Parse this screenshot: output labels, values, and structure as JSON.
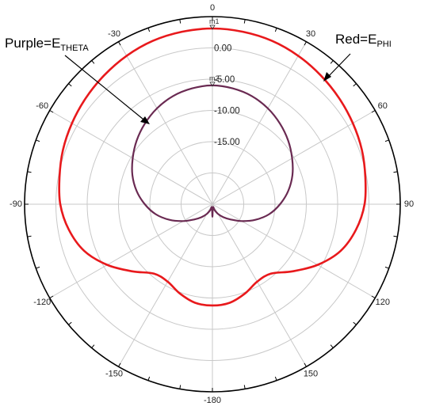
{
  "colors": {
    "phi": "#e8191c",
    "theta": "#6a2a52",
    "grid": "#c8c8c8",
    "ring": "#000000"
  },
  "annotations": {
    "theta": {
      "prefix": "Purple=E",
      "sub": "THETA"
    },
    "phi": {
      "prefix": "Red=E",
      "sub": "PHI"
    }
  },
  "chart_data": {
    "type": "polar",
    "title": "",
    "angle_unit": "deg",
    "angle_ticks": [
      0,
      30,
      60,
      90,
      120,
      150,
      -180,
      -150,
      -120,
      -90,
      -60,
      -30
    ],
    "radial_ticks": [
      0,
      -5,
      -10,
      -15
    ],
    "radial_tick_labels": [
      "0.00",
      "-5.00",
      "-10.00",
      "-15.00"
    ],
    "rlim": [
      -25,
      5
    ],
    "markers": [
      {
        "name": "m1",
        "angle": 0,
        "value": 3.1
      },
      {
        "name": "m2",
        "angle": 0,
        "value": -6.0
      }
    ],
    "series": [
      {
        "name": "Red=EPHI",
        "color": "#e8191c",
        "theta": [
          0,
          10,
          20,
          30,
          40,
          50,
          60,
          70,
          80,
          90,
          100,
          110,
          120,
          130,
          140,
          150,
          160,
          170,
          180,
          190,
          200,
          210,
          220,
          230,
          240,
          250,
          260,
          270,
          280,
          290,
          300,
          310,
          320,
          330,
          340,
          350
        ],
        "r": [
          3.1,
          3.0,
          2.8,
          2.4,
          1.9,
          1.4,
          0.9,
          0.4,
          -0.2,
          -0.7,
          -1.7,
          -3.2,
          -5.6,
          -8.3,
          -10.5,
          -10.7,
          -9.8,
          -9.0,
          -8.8,
          -9.0,
          -9.8,
          -10.7,
          -10.5,
          -8.3,
          -5.6,
          -3.2,
          -1.7,
          -0.7,
          -0.2,
          0.4,
          0.9,
          1.4,
          1.9,
          2.4,
          2.8,
          3.0
        ]
      },
      {
        "name": "Purple=ETHETA",
        "color": "#6a2a52",
        "theta": [
          0,
          10,
          20,
          30,
          40,
          50,
          60,
          70,
          80,
          90,
          100,
          110,
          120,
          130,
          140,
          150,
          160,
          170,
          180,
          190,
          200,
          210,
          220,
          230,
          240,
          250,
          260,
          270,
          280,
          290,
          300,
          310,
          320,
          330,
          340,
          350
        ],
        "r": [
          -6.0,
          -6.2,
          -6.6,
          -7.3,
          -8.2,
          -9.2,
          -10.3,
          -11.4,
          -12.7,
          -14.2,
          -15.8,
          -17.7,
          -19.6,
          -21.2,
          -22.3,
          -23.2,
          -24.0,
          -24.5,
          -23.0,
          -24.5,
          -24.0,
          -23.2,
          -22.3,
          -21.2,
          -19.6,
          -17.7,
          -15.8,
          -14.2,
          -12.7,
          -11.4,
          -10.3,
          -9.2,
          -8.2,
          -7.3,
          -6.6,
          -6.2
        ]
      }
    ]
  }
}
